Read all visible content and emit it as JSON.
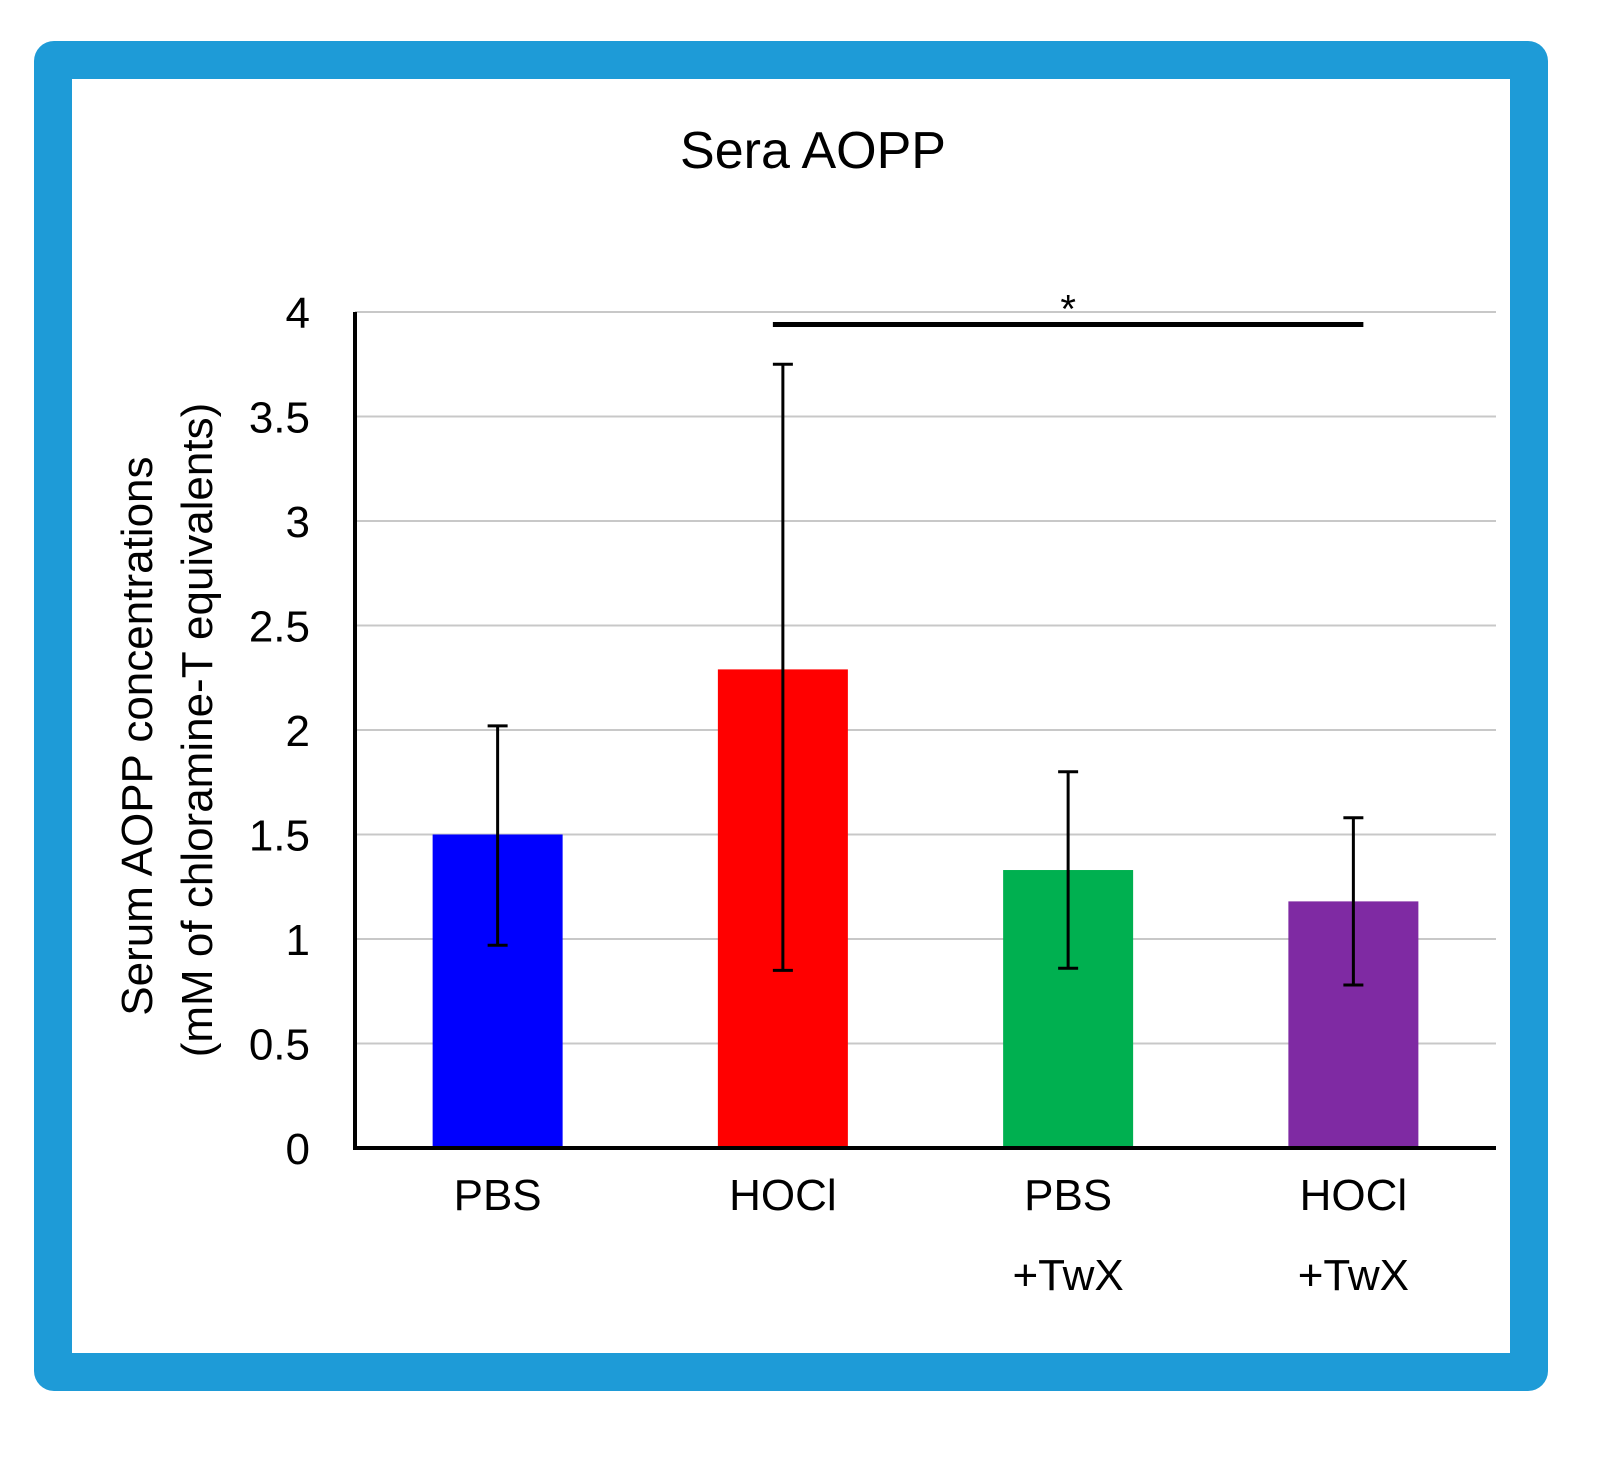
{
  "frame_color": "#1e9bd7",
  "chart_data": {
    "type": "bar",
    "title": "Sera AOPP",
    "xlabel": "",
    "ylabel": [
      "Serum AOPP concentrations",
      "(mM of chloramine-T equivalents)"
    ],
    "ylim": [
      0,
      4
    ],
    "yticks": [
      "0",
      "0.5",
      "1",
      "1.5",
      "2",
      "2.5",
      "3",
      "3.5",
      "4"
    ],
    "grid": true,
    "legend": "none",
    "categories": [
      [
        "PBS"
      ],
      [
        "HOCl"
      ],
      [
        "PBS",
        "+TwX"
      ],
      [
        "HOCl",
        "+TwX"
      ]
    ],
    "values": [
      1.5,
      2.29,
      1.33,
      1.18
    ],
    "error_low": [
      0.97,
      0.85,
      0.86,
      0.78
    ],
    "error_high": [
      2.02,
      3.75,
      1.8,
      1.58
    ],
    "colors": [
      "#0000ff",
      "#ff0000",
      "#00b050",
      "#7f2aa3"
    ],
    "significance": {
      "from": 1,
      "to": 3,
      "y": 3.94,
      "label": "*"
    }
  }
}
